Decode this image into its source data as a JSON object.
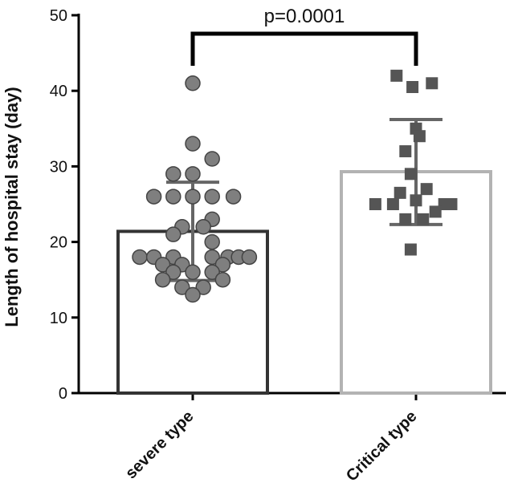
{
  "chart_data": {
    "type": "bar",
    "title": "",
    "xlabel": "",
    "ylabel": "Length of  hospital stay (day)",
    "ylim": [
      0,
      50
    ],
    "yticks": [
      0,
      10,
      20,
      30,
      40,
      50
    ],
    "categories": [
      "severe type",
      "Critical type"
    ],
    "bars": [
      {
        "name": "severe type",
        "mean": 21.4,
        "sd_low": 14.9,
        "sd_high": 27.9,
        "color": "#333333",
        "marker": "circle",
        "marker_color": "#7f7f7f",
        "points": [
          {
            "dx": 0,
            "y": 41
          },
          {
            "dx": 0,
            "y": 33
          },
          {
            "dx": 1.1,
            "y": 31
          },
          {
            "dx": -1.1,
            "y": 29
          },
          {
            "dx": 0,
            "y": 29
          },
          {
            "dx": -2.2,
            "y": 26
          },
          {
            "dx": -1.1,
            "y": 26
          },
          {
            "dx": 0,
            "y": 26
          },
          {
            "dx": 1.1,
            "y": 26
          },
          {
            "dx": 2.3,
            "y": 26
          },
          {
            "dx": 1.1,
            "y": 23
          },
          {
            "dx": -0.6,
            "y": 22
          },
          {
            "dx": 0.6,
            "y": 22
          },
          {
            "dx": -1.1,
            "y": 21
          },
          {
            "dx": 1.1,
            "y": 20
          },
          {
            "dx": -3.0,
            "y": 18
          },
          {
            "dx": -2.2,
            "y": 18
          },
          {
            "dx": -1.1,
            "y": 18
          },
          {
            "dx": 1.1,
            "y": 18
          },
          {
            "dx": 2.0,
            "y": 18
          },
          {
            "dx": 2.6,
            "y": 18
          },
          {
            "dx": 3.2,
            "y": 18
          },
          {
            "dx": -1.7,
            "y": 17
          },
          {
            "dx": -0.6,
            "y": 17
          },
          {
            "dx": 1.7,
            "y": 17
          },
          {
            "dx": -1.1,
            "y": 16
          },
          {
            "dx": 0,
            "y": 16
          },
          {
            "dx": 1.1,
            "y": 16
          },
          {
            "dx": -1.7,
            "y": 15
          },
          {
            "dx": 1.7,
            "y": 15
          },
          {
            "dx": -0.6,
            "y": 14
          },
          {
            "dx": 0.6,
            "y": 14
          },
          {
            "dx": 0,
            "y": 13
          }
        ]
      },
      {
        "name": "Critical type",
        "mean": 29.3,
        "sd_low": 22.3,
        "sd_high": 36.2,
        "color": "#b3b3b3",
        "marker": "square",
        "marker_color": "#555555",
        "points": [
          {
            "dx": -1.1,
            "y": 42
          },
          {
            "dx": 0.9,
            "y": 41
          },
          {
            "dx": -0.2,
            "y": 40.5
          },
          {
            "dx": 0,
            "y": 35
          },
          {
            "dx": 0.2,
            "y": 34
          },
          {
            "dx": -0.6,
            "y": 32
          },
          {
            "dx": -0.3,
            "y": 29
          },
          {
            "dx": 0.6,
            "y": 27
          },
          {
            "dx": -0.9,
            "y": 26.5
          },
          {
            "dx": -2.3,
            "y": 25
          },
          {
            "dx": -1.3,
            "y": 25
          },
          {
            "dx": 0,
            "y": 25.5
          },
          {
            "dx": 1.6,
            "y": 25
          },
          {
            "dx": 2.0,
            "y": 25
          },
          {
            "dx": 1.1,
            "y": 24
          },
          {
            "dx": -0.6,
            "y": 23
          },
          {
            "dx": 0.4,
            "y": 23
          },
          {
            "dx": -0.3,
            "y": 19
          }
        ]
      }
    ],
    "annotation": {
      "text": "p=0.0001",
      "between": [
        "severe type",
        "Critical type"
      ]
    }
  }
}
